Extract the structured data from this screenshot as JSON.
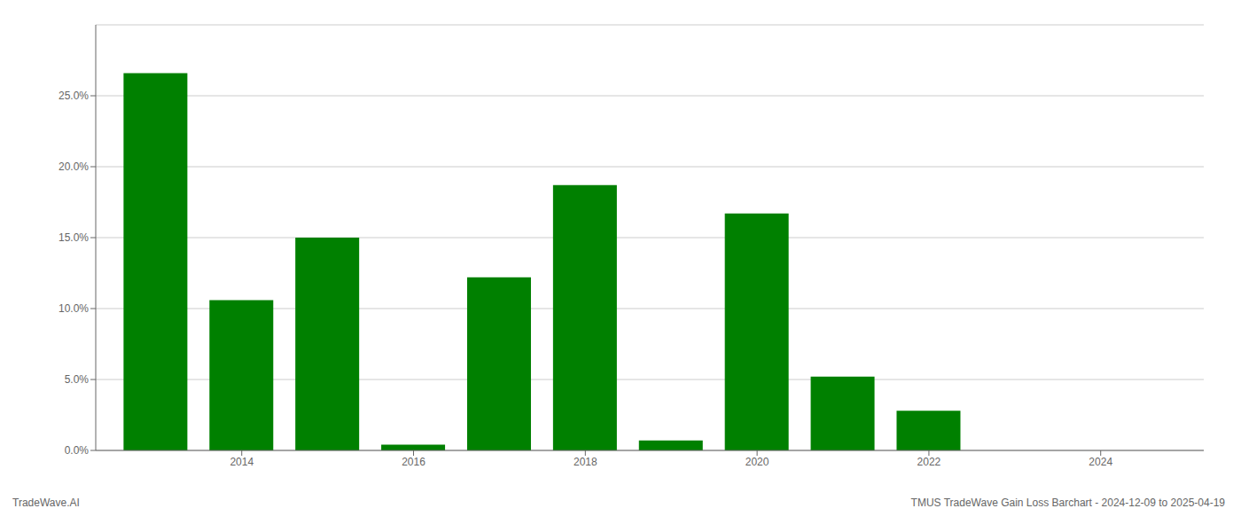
{
  "chart_data": {
    "type": "bar",
    "x": [
      2013,
      2014,
      2015,
      2016,
      2017,
      2018,
      2019,
      2020,
      2021,
      2022,
      2023,
      2024
    ],
    "values": [
      0.266,
      0.106,
      0.15,
      0.004,
      0.122,
      0.187,
      0.007,
      0.167,
      0.052,
      0.028,
      0.0,
      0.0
    ],
    "color": "#008000",
    "xlim": [
      2012.3,
      2025.2
    ],
    "xticks": [
      2014,
      2016,
      2018,
      2020,
      2022,
      2024
    ],
    "ylim": [
      0,
      0.3
    ],
    "yticks": [
      {
        "value": 0.0,
        "label": "0.0%"
      },
      {
        "value": 0.05,
        "label": "5.0%"
      },
      {
        "value": 0.1,
        "label": "10.0%"
      },
      {
        "value": 0.15,
        "label": "15.0%"
      },
      {
        "value": 0.2,
        "label": "20.0%"
      },
      {
        "value": 0.25,
        "label": "25.0%"
      }
    ],
    "grid": true,
    "annotations": [
      "TradeWave.AI",
      "TMUS TradeWave Gain Loss Barchart - 2024-12-09 to 2025-04-19"
    ]
  }
}
